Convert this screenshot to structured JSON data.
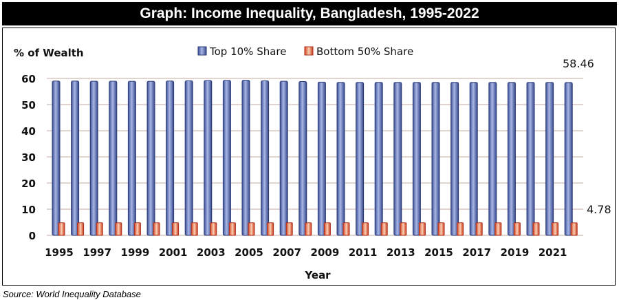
{
  "title": "Graph: Income Inequality, Bangladesh, 1995-2022",
  "source": "Source: World Inequality Database",
  "chart_data": {
    "type": "bar",
    "title": "Graph: Income Inequality, Bangladesh, 1995-2022",
    "xlabel": "Year",
    "ylabel": "% of Wealth",
    "ylim": [
      0,
      60
    ],
    "yticks": [
      0,
      10,
      20,
      30,
      40,
      50,
      60
    ],
    "grid": true,
    "legend": "top",
    "categories": [
      1995,
      1996,
      1997,
      1998,
      1999,
      2000,
      2001,
      2002,
      2003,
      2004,
      2005,
      2006,
      2007,
      2008,
      2009,
      2010,
      2011,
      2012,
      2013,
      2014,
      2015,
      2016,
      2017,
      2018,
      2019,
      2020,
      2021,
      2022
    ],
    "xtick_labels": [
      "1995",
      "1997",
      "1999",
      "2001",
      "2003",
      "2005",
      "2007",
      "2009",
      "2011",
      "2013",
      "2015",
      "2017",
      "2019",
      "2021"
    ],
    "series": [
      {
        "name": "Top 10% Share",
        "color": "#4a62b0",
        "values": [
          59.0,
          59.0,
          58.95,
          58.95,
          58.9,
          58.9,
          59.0,
          59.1,
          59.2,
          59.25,
          59.3,
          59.1,
          58.95,
          58.8,
          58.6,
          58.5,
          58.5,
          58.5,
          58.5,
          58.5,
          58.5,
          58.5,
          58.5,
          58.5,
          58.5,
          58.5,
          58.5,
          58.46
        ]
      },
      {
        "name": "Bottom 50% Share",
        "color": "#e8542e",
        "values": [
          4.8,
          4.8,
          4.8,
          4.8,
          4.8,
          4.8,
          4.8,
          4.8,
          4.8,
          4.8,
          4.8,
          4.8,
          4.8,
          4.8,
          4.8,
          4.8,
          4.8,
          4.8,
          4.8,
          4.8,
          4.8,
          4.8,
          4.8,
          4.8,
          4.8,
          4.8,
          4.8,
          4.78
        ]
      }
    ],
    "annotations": [
      "58.46",
      "4.78"
    ]
  }
}
